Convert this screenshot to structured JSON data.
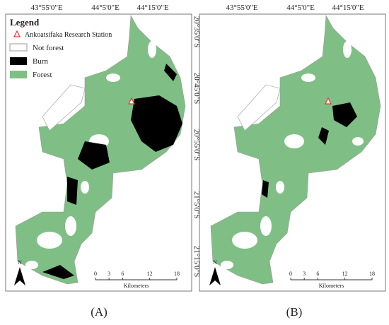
{
  "panels": [
    {
      "label": "(A)",
      "x_labels": [
        "43°55'0\"E",
        "44°5'0\"E",
        "44°15'0\"E"
      ],
      "y_labels": [
        "20°35'0\"S",
        "20°45'0\"S",
        "20°55'0\"S",
        "21°5'0\"S",
        "21°15'0\"S"
      ],
      "scale": {
        "ticks": [
          0,
          3,
          6,
          12,
          18
        ],
        "unit": "Kilometers"
      },
      "north": "N"
    },
    {
      "label": "(B)",
      "x_labels": [
        "43°55'0\"E",
        "44°5'0\"E",
        "44°15'0\"E"
      ],
      "y_labels": [
        "20°35'0\"S",
        "20°45'0\"S",
        "20°55'0\"S",
        "21°5'0\"S",
        "21°15'0\"S"
      ],
      "scale": {
        "ticks": [
          0,
          3,
          6,
          12,
          18
        ],
        "unit": "Kilometers"
      },
      "north": "N"
    }
  ],
  "legend": {
    "title": "Legend",
    "items": [
      "Ankoatsifaka Research Station",
      "Not forest",
      "Burn",
      "Forest"
    ]
  }
}
